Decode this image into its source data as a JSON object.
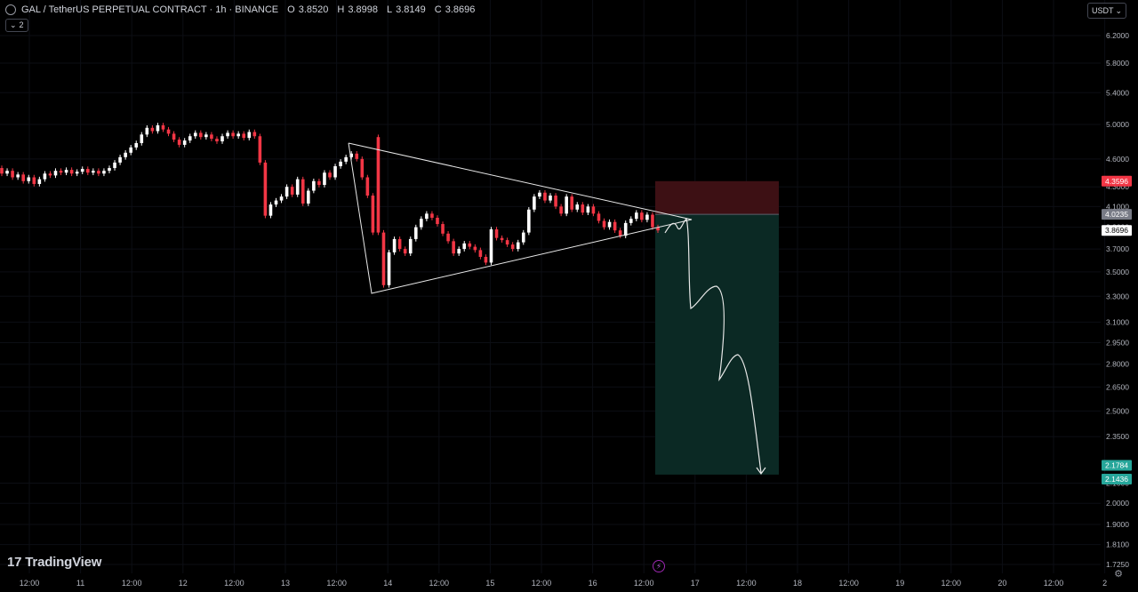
{
  "header": {
    "symbol": "GAL / TetherUS PERPETUAL CONTRACT · 1h · BINANCE",
    "open_label": "O",
    "open": "3.8520",
    "high_label": "H",
    "high": "3.8998",
    "low_label": "L",
    "low": "3.8149",
    "close_label": "C",
    "close": "3.8696",
    "indicators_count": "2"
  },
  "currency": "USDT",
  "brand": "TradingView",
  "colors": {
    "background": "#000000",
    "up_candle": "#ffffff",
    "down_candle": "#f23645",
    "axis_text": "#b2b5be",
    "stop_zone": "#3d1014",
    "target_zone": "#0b2924",
    "stop_label": "#f23645",
    "target_label": "#26a69a",
    "entry_label": "#787b86"
  },
  "chart_data": {
    "type": "candlestick",
    "y_axis": {
      "scale": "log",
      "ticks": [
        "6.2000",
        "5.8000",
        "5.4000",
        "5.0000",
        "4.6000",
        "4.3000",
        "4.1000",
        "3.9000",
        "3.7000",
        "3.5000",
        "3.3000",
        "3.1000",
        "2.9500",
        "2.8000",
        "2.6500",
        "2.5000",
        "2.3500",
        "2.1000",
        "2.0000",
        "1.9000",
        "1.8100",
        "1.7250"
      ]
    },
    "x_axis": {
      "ticks": [
        "12:00",
        "11",
        "12:00",
        "12",
        "12:00",
        "13",
        "12:00",
        "14",
        "12:00",
        "15",
        "12:00",
        "16",
        "12:00",
        "17",
        "12:00",
        "18",
        "12:00",
        "19",
        "12:00",
        "20",
        "12:00",
        "2"
      ]
    },
    "price_labels": [
      {
        "role": "stop",
        "value": "4.3596"
      },
      {
        "role": "entry",
        "value": "4.0235"
      },
      {
        "role": "last",
        "value": "3.8696"
      },
      {
        "role": "target-top",
        "value": "2.1784"
      },
      {
        "role": "target",
        "value": "2.1436"
      }
    ],
    "ohlc_path": [
      [
        4.5,
        4.44
      ],
      [
        4.44,
        4.47
      ],
      [
        4.47,
        4.4
      ],
      [
        4.4,
        4.43
      ],
      [
        4.43,
        4.36
      ],
      [
        4.36,
        4.4
      ],
      [
        4.4,
        4.33
      ],
      [
        4.33,
        4.38
      ],
      [
        4.38,
        4.44
      ],
      [
        4.44,
        4.42
      ],
      [
        4.42,
        4.47
      ],
      [
        4.47,
        4.45
      ],
      [
        4.45,
        4.48
      ],
      [
        4.48,
        4.44
      ],
      [
        4.44,
        4.46
      ],
      [
        4.46,
        4.49
      ],
      [
        4.49,
        4.45
      ],
      [
        4.45,
        4.47
      ],
      [
        4.47,
        4.44
      ],
      [
        4.44,
        4.47
      ],
      [
        4.47,
        4.5
      ],
      [
        4.5,
        4.56
      ],
      [
        4.56,
        4.62
      ],
      [
        4.62,
        4.67
      ],
      [
        4.67,
        4.73
      ],
      [
        4.73,
        4.78
      ],
      [
        4.78,
        4.88
      ],
      [
        4.88,
        4.96
      ],
      [
        4.96,
        4.92
      ],
      [
        4.92,
        4.99
      ],
      [
        4.99,
        4.94
      ],
      [
        4.94,
        4.89
      ],
      [
        4.89,
        4.82
      ],
      [
        4.82,
        4.76
      ],
      [
        4.76,
        4.81
      ],
      [
        4.81,
        4.86
      ],
      [
        4.86,
        4.9
      ],
      [
        4.9,
        4.85
      ],
      [
        4.85,
        4.88
      ],
      [
        4.88,
        4.83
      ],
      [
        4.83,
        4.8
      ],
      [
        4.8,
        4.86
      ],
      [
        4.86,
        4.9
      ],
      [
        4.9,
        4.86
      ],
      [
        4.86,
        4.89
      ],
      [
        4.89,
        4.84
      ],
      [
        4.84,
        4.91
      ],
      [
        4.91,
        4.86
      ],
      [
        4.86,
        4.56
      ],
      [
        4.56,
        4.01
      ],
      [
        4.01,
        4.12
      ],
      [
        4.12,
        4.16
      ],
      [
        4.16,
        4.2
      ],
      [
        4.2,
        4.3
      ],
      [
        4.3,
        4.22
      ],
      [
        4.22,
        4.38
      ],
      [
        4.38,
        4.13
      ],
      [
        4.13,
        4.26
      ],
      [
        4.26,
        4.36
      ],
      [
        4.36,
        4.32
      ],
      [
        4.32,
        4.45
      ],
      [
        4.45,
        4.4
      ],
      [
        4.4,
        4.52
      ],
      [
        4.52,
        4.57
      ],
      [
        4.57,
        4.62
      ],
      [
        4.62,
        4.66
      ],
      [
        4.66,
        4.6
      ],
      [
        4.6,
        4.4
      ],
      [
        4.4,
        4.21
      ],
      [
        4.21,
        3.85
      ],
      [
        4.85,
        3.85
      ],
      [
        3.85,
        3.39
      ],
      [
        3.39,
        3.67
      ],
      [
        3.67,
        3.79
      ],
      [
        3.79,
        3.7
      ],
      [
        3.7,
        3.66
      ],
      [
        3.66,
        3.79
      ],
      [
        3.79,
        3.9
      ],
      [
        3.9,
        3.98
      ],
      [
        3.98,
        4.03
      ],
      [
        4.03,
        3.99
      ],
      [
        3.99,
        3.93
      ],
      [
        3.93,
        3.84
      ],
      [
        3.84,
        3.77
      ],
      [
        3.77,
        3.66
      ],
      [
        3.66,
        3.7
      ],
      [
        3.7,
        3.75
      ],
      [
        3.75,
        3.72
      ],
      [
        3.72,
        3.69
      ],
      [
        3.69,
        3.63
      ],
      [
        3.63,
        3.58
      ],
      [
        3.58,
        3.88
      ],
      [
        3.88,
        3.8
      ],
      [
        3.8,
        3.78
      ],
      [
        3.78,
        3.74
      ],
      [
        3.74,
        3.7
      ],
      [
        3.7,
        3.76
      ],
      [
        3.76,
        3.85
      ],
      [
        3.85,
        4.07
      ],
      [
        4.07,
        4.2
      ],
      [
        4.2,
        4.24
      ],
      [
        4.24,
        4.16
      ],
      [
        4.16,
        4.21
      ],
      [
        4.21,
        4.1
      ],
      [
        4.1,
        4.03
      ],
      [
        4.03,
        4.2
      ],
      [
        4.2,
        4.07
      ],
      [
        4.07,
        4.12
      ],
      [
        4.12,
        4.04
      ],
      [
        4.04,
        4.1
      ],
      [
        4.1,
        4.03
      ],
      [
        4.03,
        3.96
      ],
      [
        3.96,
        3.9
      ],
      [
        3.9,
        3.95
      ],
      [
        3.95,
        3.87
      ],
      [
        3.87,
        3.82
      ],
      [
        3.82,
        3.94
      ],
      [
        3.94,
        3.98
      ],
      [
        3.98,
        4.04
      ],
      [
        4.04,
        3.97
      ],
      [
        3.97,
        4.02
      ],
      [
        4.02,
        3.9
      ],
      [
        3.9,
        3.87
      ]
    ]
  }
}
